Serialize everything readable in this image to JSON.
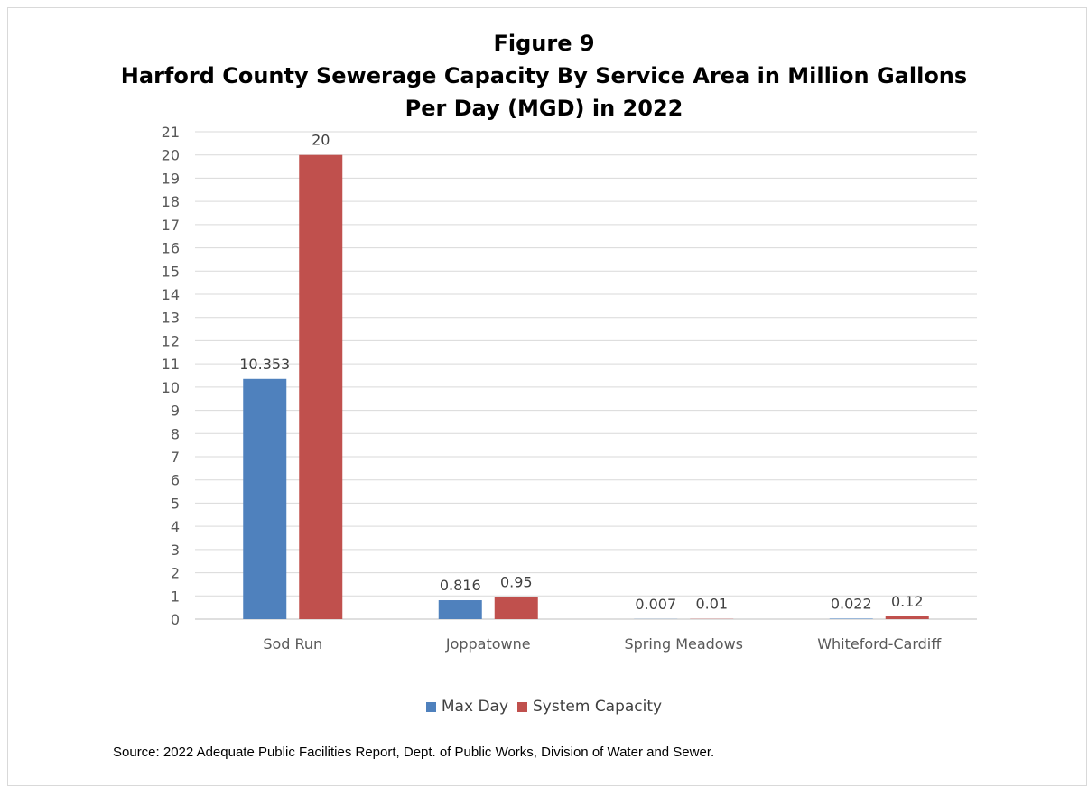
{
  "chart_data": {
    "type": "bar",
    "title": [
      "Figure 9",
      "Harford County Sewerage Capacity By Service Area in Million Gallons",
      "Per Day (MGD) in 2022"
    ],
    "categories": [
      "Sod Run",
      "Joppatowne",
      "Spring Meadows",
      "Whiteford-Cardiff"
    ],
    "series": [
      {
        "name": "Max Day",
        "values": [
          10.353,
          0.816,
          0.007,
          0.022
        ],
        "labels": [
          "10.353",
          "0.816",
          "0.007",
          "0.022"
        ],
        "color": "#4f81bd"
      },
      {
        "name": "System Capacity",
        "values": [
          20,
          0.95,
          0.01,
          0.12
        ],
        "labels": [
          "20",
          "0.95",
          "0.01",
          "0.12"
        ],
        "color": "#c0504d"
      }
    ],
    "ylim": [
      0,
      21
    ],
    "yticks": [
      0,
      1,
      2,
      3,
      4,
      5,
      6,
      7,
      8,
      9,
      10,
      11,
      12,
      13,
      14,
      15,
      16,
      17,
      18,
      19,
      20,
      21
    ],
    "grid": true,
    "legend_position": "bottom"
  },
  "source_note": "Source: 2022 Adequate Public Facilities Report, Dept. of Public Works, Division of Water and Sewer."
}
